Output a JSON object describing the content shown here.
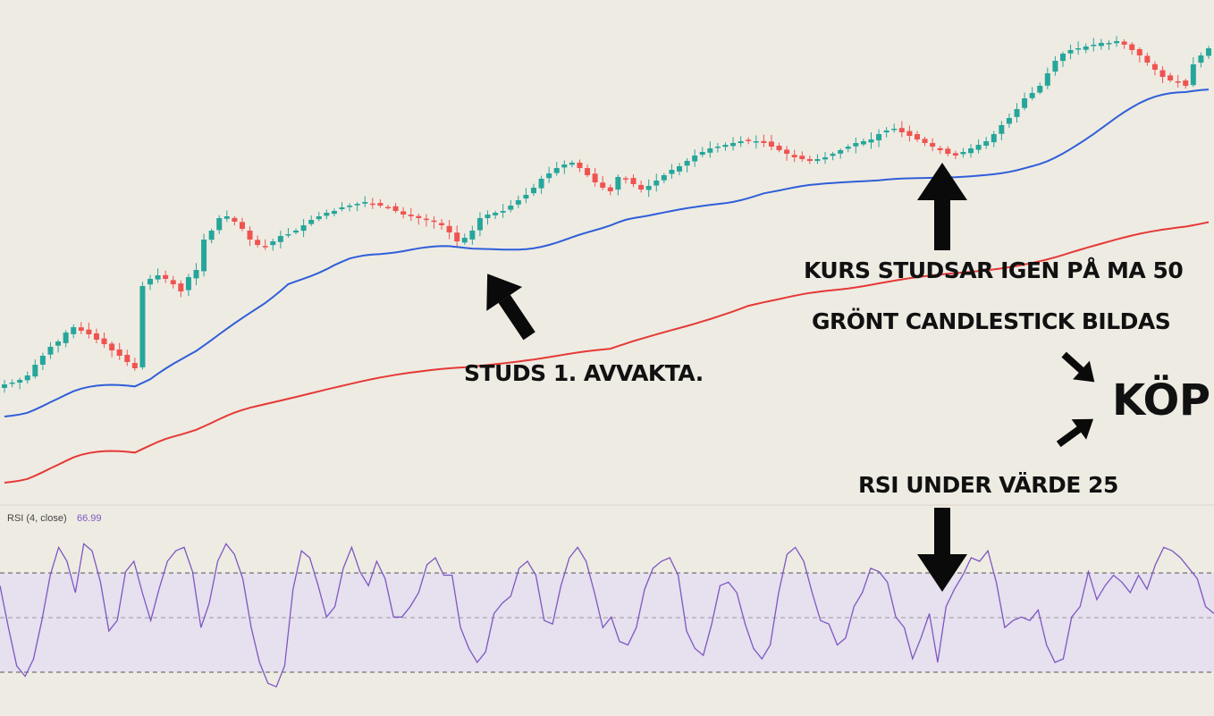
{
  "colors": {
    "up": "#26a69a",
    "down": "#ef5350",
    "ma50": "#2f5fd8",
    "ma200": "#e53935",
    "rsi_line": "#7e57c2",
    "rsi_band": "#e6e0ef",
    "arrow": "#0a0a0a"
  },
  "annotations": {
    "studs1": "STUDS 1. AVVAKTA.",
    "kurs_studsar": "KURS STUDSAR IGEN PÅ MA 50",
    "gront_candlestick": "GRÖNT CANDLESTICK BILDAS",
    "kop": "KÖP",
    "rsi_under": "RSI UNDER VÄRDE 25"
  },
  "rsi_indicator": {
    "label": "RSI (4, close)",
    "value": "66.99"
  },
  "chart_data": [
    {
      "type": "candlestick",
      "title": "",
      "overlays": [
        {
          "name": "",
          "kind": "moving-average",
          "period": 50,
          "color": "#2f5fd8"
        },
        {
          "name": "",
          "kind": "moving-average",
          "period": 200,
          "color": "#e53935"
        }
      ],
      "grid": false,
      "close": [
        430,
        428,
        425,
        420,
        408,
        398,
        388,
        382,
        372,
        366,
        370,
        374,
        380,
        385,
        392,
        398,
        405,
        412,
        320,
        312,
        308,
        312,
        318,
        326,
        310,
        302,
        268,
        258,
        244,
        242,
        248,
        256,
        268,
        274,
        276,
        270,
        264,
        262,
        258,
        252,
        246,
        242,
        238,
        236,
        232,
        230,
        228,
        226,
        228,
        230,
        232,
        236,
        240,
        242,
        244,
        246,
        248,
        252,
        260,
        270,
        266,
        258,
        244,
        240,
        238,
        236,
        230,
        224,
        218,
        210,
        200,
        194,
        188,
        184,
        182,
        188,
        196,
        204,
        210,
        214,
        198,
        200,
        206,
        212,
        208,
        202,
        196,
        190,
        186,
        180,
        174,
        170,
        166,
        164,
        162,
        160,
        158,
        157,
        158,
        160,
        164,
        168,
        172,
        176,
        178,
        180,
        178,
        176,
        172,
        168,
        164,
        160,
        158,
        156,
        150,
        146,
        144,
        148,
        152,
        156,
        160,
        164,
        168,
        172,
        174,
        170,
        166,
        162,
        158,
        150,
        140,
        132,
        122,
        110,
        104,
        96,
        82,
        68,
        60,
        56,
        54,
        52,
        50,
        48,
        48,
        46,
        50,
        56,
        62,
        70,
        78,
        86,
        90,
        92,
        96,
        72,
        62,
        54
      ]
    },
    {
      "type": "line",
      "title": "",
      "reference_lines": [
        70,
        50,
        30
      ],
      "y": [
        64,
        40,
        18,
        12,
        22,
        44,
        70,
        86,
        78,
        60,
        88,
        84,
        66,
        38,
        44,
        72,
        78,
        60,
        44,
        62,
        78,
        84,
        86,
        72,
        40,
        54,
        78,
        88,
        82,
        68,
        40,
        20,
        8,
        6,
        18,
        62,
        84,
        80,
        64,
        46,
        52,
        74,
        86,
        72,
        64,
        78,
        68,
        46,
        46,
        52,
        60,
        76,
        80,
        70,
        70,
        40,
        28,
        20,
        26,
        48,
        54,
        58,
        74,
        78,
        70,
        44,
        42,
        64,
        80,
        86,
        78,
        60,
        40,
        46,
        32,
        30,
        40,
        62,
        74,
        78,
        80,
        70,
        38,
        28,
        24,
        42,
        64,
        66,
        60,
        42,
        28,
        22,
        30,
        60,
        82,
        86,
        78,
        60,
        44,
        42,
        30,
        34,
        52,
        60,
        74,
        72,
        66,
        46,
        40,
        22,
        34,
        48,
        20,
        52,
        62,
        70,
        80,
        78,
        84,
        66,
        40,
        44,
        46,
        44,
        50,
        30,
        20,
        22,
        46,
        52,
        72,
        56,
        64,
        70,
        66,
        60,
        70,
        62,
        76,
        86,
        84,
        80,
        74,
        68,
        52,
        48
      ]
    }
  ]
}
